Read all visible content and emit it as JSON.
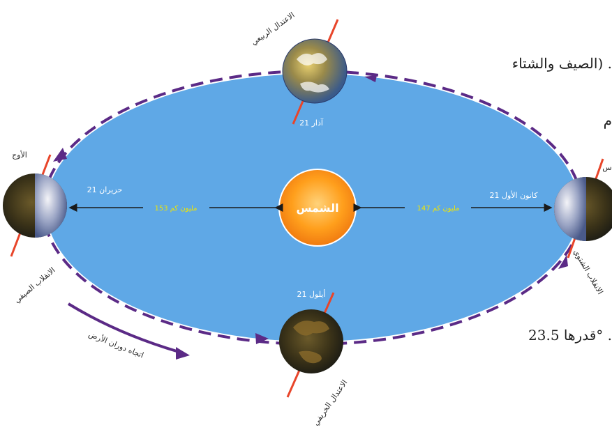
{
  "background_text": {
    "line1": "الصيف والشتاء) .",
    "line2": "م",
    "line3": "قدرها 23.5° ."
  },
  "diagram": {
    "sun_label": "الشمس",
    "positions": {
      "top": {
        "title": "الاعتدال الربيعي",
        "date": "21 آذار"
      },
      "left": {
        "title_top": "الأوج",
        "title_bottom": "الانقلاب الصيفي",
        "date": "21 حزيران"
      },
      "right": {
        "title_top": "س",
        "title_bottom": "الانقلاب الشتوي",
        "date": "21 كانون الأول"
      },
      "bottom": {
        "title": "الاعتدال الخريفي",
        "date": "21 أيلول"
      }
    },
    "distances": {
      "left": "153 مليون كم",
      "right": "147 مليون كم"
    },
    "rotation_label": "اتجاه دوران الأرض"
  },
  "colors": {
    "orbit_fill": "#5fa8e6",
    "orbit_dash": "#5b2a86",
    "sun": "#ff9a1a",
    "axis": "#e8452a"
  }
}
